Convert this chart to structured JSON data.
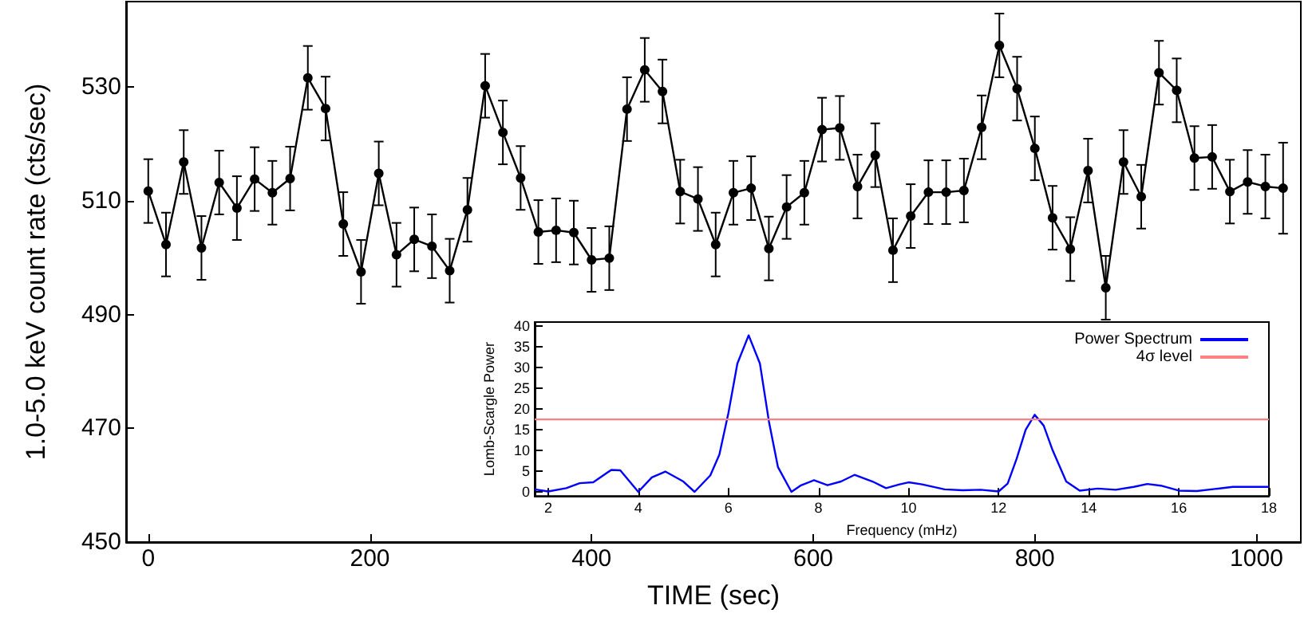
{
  "chart_data": [
    {
      "type": "line",
      "xlabel": "TIME (sec)",
      "ylabel": "1.0-5.0 keV count rate (cts/sec)",
      "xlim": [
        -20,
        1040
      ],
      "xticks": [
        0,
        200,
        400,
        600,
        800,
        1000
      ],
      "ylim": [
        450,
        545
      ],
      "yticks": [
        450,
        470,
        490,
        510,
        530
      ],
      "grid": false,
      "legend": false,
      "marker": "circle",
      "line_style": "solid",
      "x": [
        0,
        16,
        32,
        48,
        64,
        80,
        96,
        112,
        128,
        144,
        160,
        176,
        192,
        208,
        224,
        240,
        256,
        272,
        288,
        304,
        320,
        336,
        352,
        368,
        384,
        400,
        416,
        432,
        448,
        464,
        480,
        496,
        512,
        528,
        544,
        560,
        576,
        592,
        608,
        624,
        640,
        656,
        672,
        688,
        704,
        720,
        736,
        752,
        768,
        784,
        800,
        816,
        832,
        848,
        864,
        880,
        896,
        912,
        928,
        944,
        960,
        976,
        992,
        1008,
        1024
      ],
      "series": [
        {
          "color": "#000000",
          "values": [
            511.7,
            502.3,
            516.8,
            501.7,
            513.2,
            508.7,
            513.8,
            511.4,
            513.9,
            531.6,
            526.2,
            505.9,
            497.5,
            514.8,
            500.5,
            503.2,
            502,
            497.7,
            508.4,
            530.2,
            522,
            514,
            504.5,
            504.8,
            504.4,
            499.6,
            499.9,
            526.1,
            533,
            529.2,
            511.6,
            510.3,
            502.3,
            511.4,
            512.2,
            501.6,
            508.9,
            511.4,
            522.5,
            522.8,
            512.5,
            518,
            501.3,
            507.3,
            511.5,
            511.5,
            511.8,
            522.9,
            537.3,
            529.7,
            519.2,
            507,
            501.5,
            515.3,
            494.7,
            516.8,
            510.7,
            532.5,
            529.4,
            517.5,
            517.7,
            511.6,
            513.3,
            512.5,
            512.2
          ],
          "errors": [
            5.6,
            5.6,
            5.6,
            5.6,
            5.6,
            5.6,
            5.6,
            5.6,
            5.6,
            5.6,
            5.6,
            5.6,
            5.6,
            5.6,
            5.6,
            5.6,
            5.6,
            5.6,
            5.6,
            5.6,
            5.6,
            5.6,
            5.6,
            5.6,
            5.6,
            5.6,
            5.6,
            5.6,
            5.6,
            5.6,
            5.6,
            5.6,
            5.6,
            5.6,
            5.6,
            5.6,
            5.6,
            5.6,
            5.6,
            5.6,
            5.6,
            5.6,
            5.6,
            5.6,
            5.6,
            5.6,
            5.6,
            5.6,
            5.6,
            5.6,
            5.6,
            5.6,
            5.6,
            5.6,
            5.6,
            5.6,
            5.6,
            5.6,
            5.6,
            5.6,
            5.6,
            5.6,
            5.6,
            5.6,
            8
          ]
        }
      ]
    },
    {
      "type": "line",
      "xlabel": "Frequency (mHz)",
      "ylabel": "Lomb-Scargle Power",
      "xlim": [
        1.7,
        18
      ],
      "xticks": [
        2,
        4,
        6,
        8,
        10,
        12,
        14,
        16,
        18
      ],
      "ylim": [
        -1,
        41
      ],
      "yticks": [
        0,
        5,
        10,
        15,
        20,
        25,
        30,
        35,
        40
      ],
      "grid": false,
      "legend": "top right",
      "marker": "none",
      "line_style": "solid",
      "series": [
        {
          "name": "Power Spectrum",
          "color": "#0000ff",
          "x": [
            1.7,
            2.0,
            2.4,
            2.7,
            3.0,
            3.4,
            3.6,
            4.0,
            4.3,
            4.6,
            5.0,
            5.25,
            5.6,
            5.8,
            6.0,
            6.2,
            6.45,
            6.7,
            6.9,
            7.1,
            7.4,
            7.6,
            7.9,
            8.2,
            8.5,
            8.8,
            9.2,
            9.5,
            9.8,
            10.0,
            10.3,
            10.8,
            11.2,
            11.6,
            12.0,
            12.2,
            12.4,
            12.6,
            12.8,
            13.0,
            13.2,
            13.5,
            13.8,
            14.2,
            14.6,
            15.0,
            15.3,
            15.6,
            16.0,
            16.4,
            16.8,
            17.2,
            18
          ],
          "values": [
            0.6,
            0.1,
            0.9,
            2.1,
            2.3,
            5.3,
            5.2,
            0,
            3.5,
            4.9,
            2.5,
            0,
            4,
            9,
            19,
            31,
            37.8,
            31,
            17,
            6,
            0,
            1.5,
            2.8,
            1.6,
            2.5,
            4.1,
            2.5,
            0.9,
            1.8,
            2.3,
            1.8,
            0.6,
            0.4,
            0.5,
            0.1,
            2,
            8,
            15,
            18.6,
            16,
            10,
            2.5,
            0.3,
            0.8,
            0.5,
            1.2,
            1.9,
            1.5,
            0.3,
            0.2,
            0.7,
            1.2,
            1.2
          ]
        },
        {
          "name": "4σ level",
          "color": "#ff8080",
          "x": [
            1.7,
            18
          ],
          "values": [
            17.5,
            17.5
          ]
        }
      ]
    }
  ]
}
